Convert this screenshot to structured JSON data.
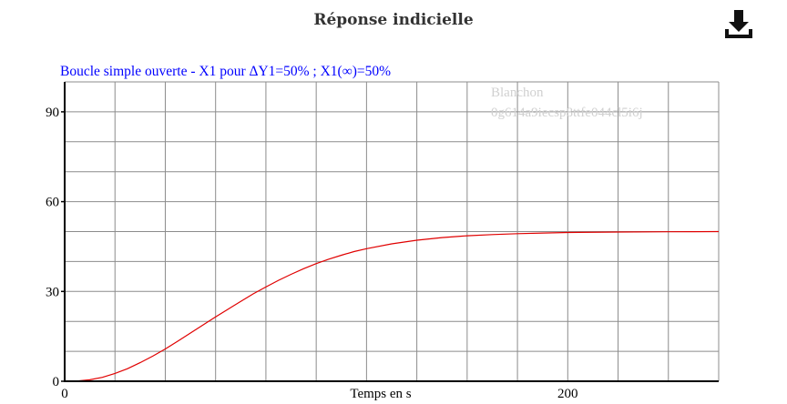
{
  "page": {
    "title": "Réponse indicielle",
    "download_icon": "download-icon"
  },
  "chart_data": {
    "type": "line",
    "title": "Boucle simple ouverte - X1 pour ΔY1=50% ; X1(∞)=50%",
    "title_color": "#0000ff",
    "xlabel": "Temps en s",
    "ylabel": "",
    "xlim": [
      0,
      260
    ],
    "ylim": [
      0,
      100
    ],
    "x_tick_labels": [
      "0",
      "200"
    ],
    "y_tick_labels": [
      "0",
      "30",
      "60",
      "90"
    ],
    "grid": true,
    "watermark": [
      "Blanchon",
      "0g614a9iecsp8ttfe044cl5i6j"
    ],
    "series": [
      {
        "color": "#e00000",
        "x": [
          0,
          5,
          10,
          15,
          20,
          25,
          30,
          35,
          40,
          45,
          50,
          55,
          60,
          65,
          70,
          75,
          80,
          85,
          90,
          95,
          100,
          105,
          110,
          115,
          120,
          130,
          140,
          150,
          160,
          170,
          180,
          190,
          200,
          220,
          240,
          260
        ],
        "y": [
          0,
          0.1,
          0.5,
          1.3,
          2.6,
          4.2,
          6.2,
          8.4,
          10.8,
          13.4,
          16.1,
          18.8,
          21.5,
          24.1,
          26.7,
          29.2,
          31.5,
          33.7,
          35.7,
          37.6,
          39.3,
          40.8,
          42.1,
          43.3,
          44.3,
          45.9,
          47.1,
          48.0,
          48.6,
          49.0,
          49.3,
          49.5,
          49.7,
          49.85,
          49.93,
          50.0
        ]
      }
    ]
  }
}
